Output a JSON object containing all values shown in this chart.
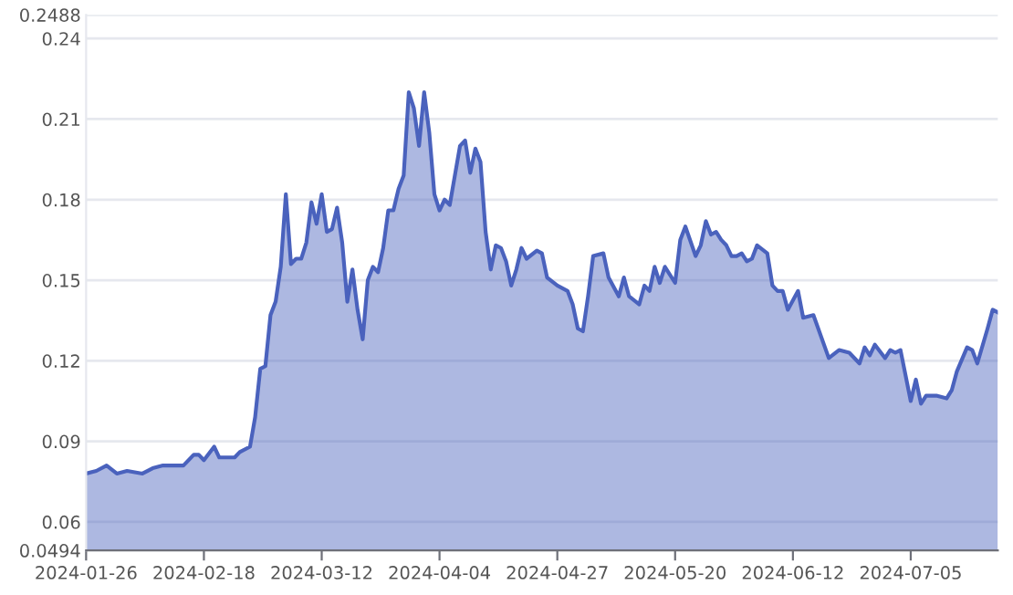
{
  "chart_data": {
    "type": "area",
    "x": [
      "2024-01-26",
      "2024-01-28",
      "2024-01-30",
      "2024-02-01",
      "2024-02-03",
      "2024-02-06",
      "2024-02-08",
      "2024-02-10",
      "2024-02-13",
      "2024-02-14",
      "2024-02-16",
      "2024-02-17",
      "2024-02-18",
      "2024-02-20",
      "2024-02-21",
      "2024-02-24",
      "2024-02-25",
      "2024-02-27",
      "2024-02-28",
      "2024-02-29",
      "2024-03-01",
      "2024-03-02",
      "2024-03-03",
      "2024-03-04",
      "2024-03-05",
      "2024-03-06",
      "2024-03-07",
      "2024-03-08",
      "2024-03-09",
      "2024-03-10",
      "2024-03-11",
      "2024-03-12",
      "2024-03-13",
      "2024-03-14",
      "2024-03-15",
      "2024-03-16",
      "2024-03-17",
      "2024-03-18",
      "2024-03-19",
      "2024-03-20",
      "2024-03-21",
      "2024-03-22",
      "2024-03-23",
      "2024-03-24",
      "2024-03-25",
      "2024-03-26",
      "2024-03-27",
      "2024-03-28",
      "2024-03-29",
      "2024-03-30",
      "2024-03-31",
      "2024-04-01",
      "2024-04-02",
      "2024-04-03",
      "2024-04-04",
      "2024-04-05",
      "2024-04-06",
      "2024-04-08",
      "2024-04-09",
      "2024-04-10",
      "2024-04-11",
      "2024-04-12",
      "2024-04-13",
      "2024-04-14",
      "2024-04-15",
      "2024-04-16",
      "2024-04-17",
      "2024-04-18",
      "2024-04-19",
      "2024-04-20",
      "2024-04-21",
      "2024-04-23",
      "2024-04-24",
      "2024-04-25",
      "2024-04-27",
      "2024-04-29",
      "2024-04-30",
      "2024-05-01",
      "2024-05-02",
      "2024-05-03",
      "2024-05-04",
      "2024-05-06",
      "2024-05-07",
      "2024-05-09",
      "2024-05-10",
      "2024-05-11",
      "2024-05-13",
      "2024-05-14",
      "2024-05-15",
      "2024-05-16",
      "2024-05-17",
      "2024-05-18",
      "2024-05-20",
      "2024-05-21",
      "2024-05-22",
      "2024-05-24",
      "2024-05-25",
      "2024-05-26",
      "2024-05-27",
      "2024-05-28",
      "2024-05-29",
      "2024-05-30",
      "2024-05-31",
      "2024-06-01",
      "2024-06-02",
      "2024-06-03",
      "2024-06-04",
      "2024-06-05",
      "2024-06-07",
      "2024-06-08",
      "2024-06-09",
      "2024-06-10",
      "2024-06-11",
      "2024-06-13",
      "2024-06-14",
      "2024-06-16",
      "2024-06-19",
      "2024-06-21",
      "2024-06-23",
      "2024-06-25",
      "2024-06-26",
      "2024-06-27",
      "2024-06-28",
      "2024-06-30",
      "2024-07-01",
      "2024-07-02",
      "2024-07-03",
      "2024-07-05",
      "2024-07-06",
      "2024-07-07",
      "2024-07-08",
      "2024-07-10",
      "2024-07-12",
      "2024-07-13",
      "2024-07-14",
      "2024-07-16",
      "2024-07-17",
      "2024-07-18",
      "2024-07-20",
      "2024-07-21",
      "2024-07-22"
    ],
    "series": [
      {
        "color": "#4a62bd",
        "values": [
          0.078,
          0.079,
          0.081,
          0.078,
          0.079,
          0.078,
          0.08,
          0.081,
          0.081,
          0.081,
          0.085,
          0.085,
          0.083,
          0.088,
          0.084,
          0.084,
          0.086,
          0.088,
          0.099,
          0.117,
          0.118,
          0.137,
          0.142,
          0.155,
          0.182,
          0.156,
          0.158,
          0.158,
          0.164,
          0.179,
          0.171,
          0.182,
          0.168,
          0.169,
          0.177,
          0.164,
          0.142,
          0.154,
          0.139,
          0.128,
          0.15,
          0.155,
          0.153,
          0.162,
          0.176,
          0.176,
          0.184,
          0.189,
          0.22,
          0.214,
          0.2,
          0.22,
          0.205,
          0.182,
          0.176,
          0.18,
          0.178,
          0.2,
          0.202,
          0.19,
          0.199,
          0.194,
          0.168,
          0.154,
          0.163,
          0.162,
          0.157,
          0.148,
          0.154,
          0.162,
          0.158,
          0.161,
          0.16,
          0.151,
          0.148,
          0.146,
          0.141,
          0.132,
          0.131,
          0.144,
          0.159,
          0.16,
          0.151,
          0.144,
          0.151,
          0.144,
          0.141,
          0.148,
          0.146,
          0.155,
          0.149,
          0.155,
          0.149,
          0.165,
          0.17,
          0.159,
          0.163,
          0.172,
          0.167,
          0.168,
          0.165,
          0.163,
          0.159,
          0.159,
          0.16,
          0.157,
          0.158,
          0.163,
          0.16,
          0.148,
          0.146,
          0.146,
          0.139,
          0.146,
          0.136,
          0.137,
          0.121,
          0.124,
          0.123,
          0.119,
          0.125,
          0.122,
          0.126,
          0.121,
          0.124,
          0.123,
          0.124,
          0.105,
          0.113,
          0.104,
          0.107,
          0.107,
          0.106,
          0.109,
          0.116,
          0.125,
          0.124,
          0.119,
          0.132,
          0.139,
          0.138
        ]
      }
    ],
    "xlim": [
      "2024-01-26",
      "2024-07-22"
    ],
    "xticks": [
      "2024-01-26",
      "2024-02-18",
      "2024-03-12",
      "2024-04-04",
      "2024-04-27",
      "2024-05-20",
      "2024-06-12",
      "2024-07-05"
    ],
    "ylim": [
      0.0494,
      0.2488
    ],
    "yticks": [
      0.0494,
      0.06,
      0.09,
      0.12,
      0.15,
      0.18,
      0.21,
      0.24,
      0.2488
    ],
    "grid": "y",
    "marker": "none",
    "line_style": "solid",
    "legend": false
  }
}
